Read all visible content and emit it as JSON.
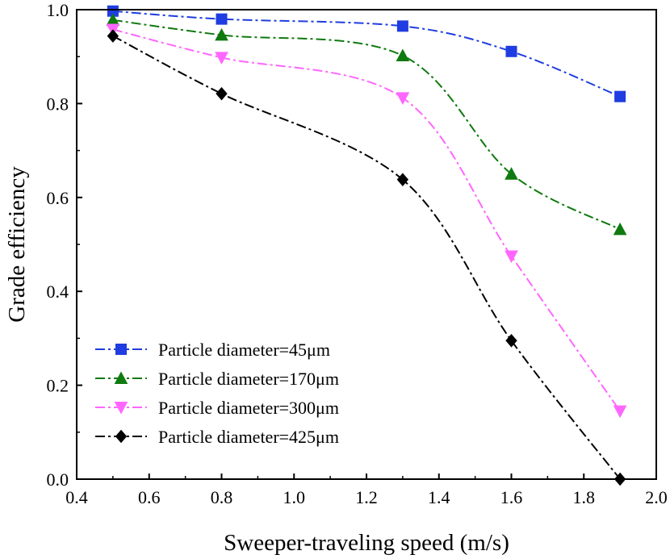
{
  "chart_data": {
    "type": "line",
    "title": "",
    "xlabel": "Sweeper-traveling speed (m/s)",
    "ylabel": "Grade efficiency",
    "xlim": [
      0.4,
      2.0
    ],
    "ylim": [
      0.0,
      1.0
    ],
    "xticks": [
      "0.4",
      "0.6",
      "0.8",
      "1.0",
      "1.2",
      "1.4",
      "1.6",
      "1.8",
      "2.0"
    ],
    "yticks": [
      "0.0",
      "0.2",
      "0.4",
      "0.6",
      "0.8",
      "1.0"
    ],
    "grid": false,
    "legend_position": "bottom-left",
    "x": [
      0.5,
      0.8,
      1.3,
      1.6,
      1.9
    ],
    "series": [
      {
        "name": "Particle diameter=45μm",
        "marker": "square",
        "color": "#1f3de0",
        "values": [
          0.997,
          0.98,
          0.965,
          0.911,
          0.815
        ]
      },
      {
        "name": "Particle diameter=170μm",
        "marker": "triangle-up",
        "color": "#0f7a0f",
        "values": [
          0.978,
          0.946,
          0.902,
          0.65,
          0.532
        ]
      },
      {
        "name": "Particle diameter=300μm",
        "marker": "triangle-down",
        "color": "#ff66ff",
        "values": [
          0.958,
          0.898,
          0.812,
          0.475,
          0.145
        ]
      },
      {
        "name": "Particle diameter=425μm",
        "marker": "diamond",
        "color": "#000000",
        "values": [
          0.944,
          0.821,
          0.638,
          0.295,
          0.0
        ]
      }
    ]
  }
}
